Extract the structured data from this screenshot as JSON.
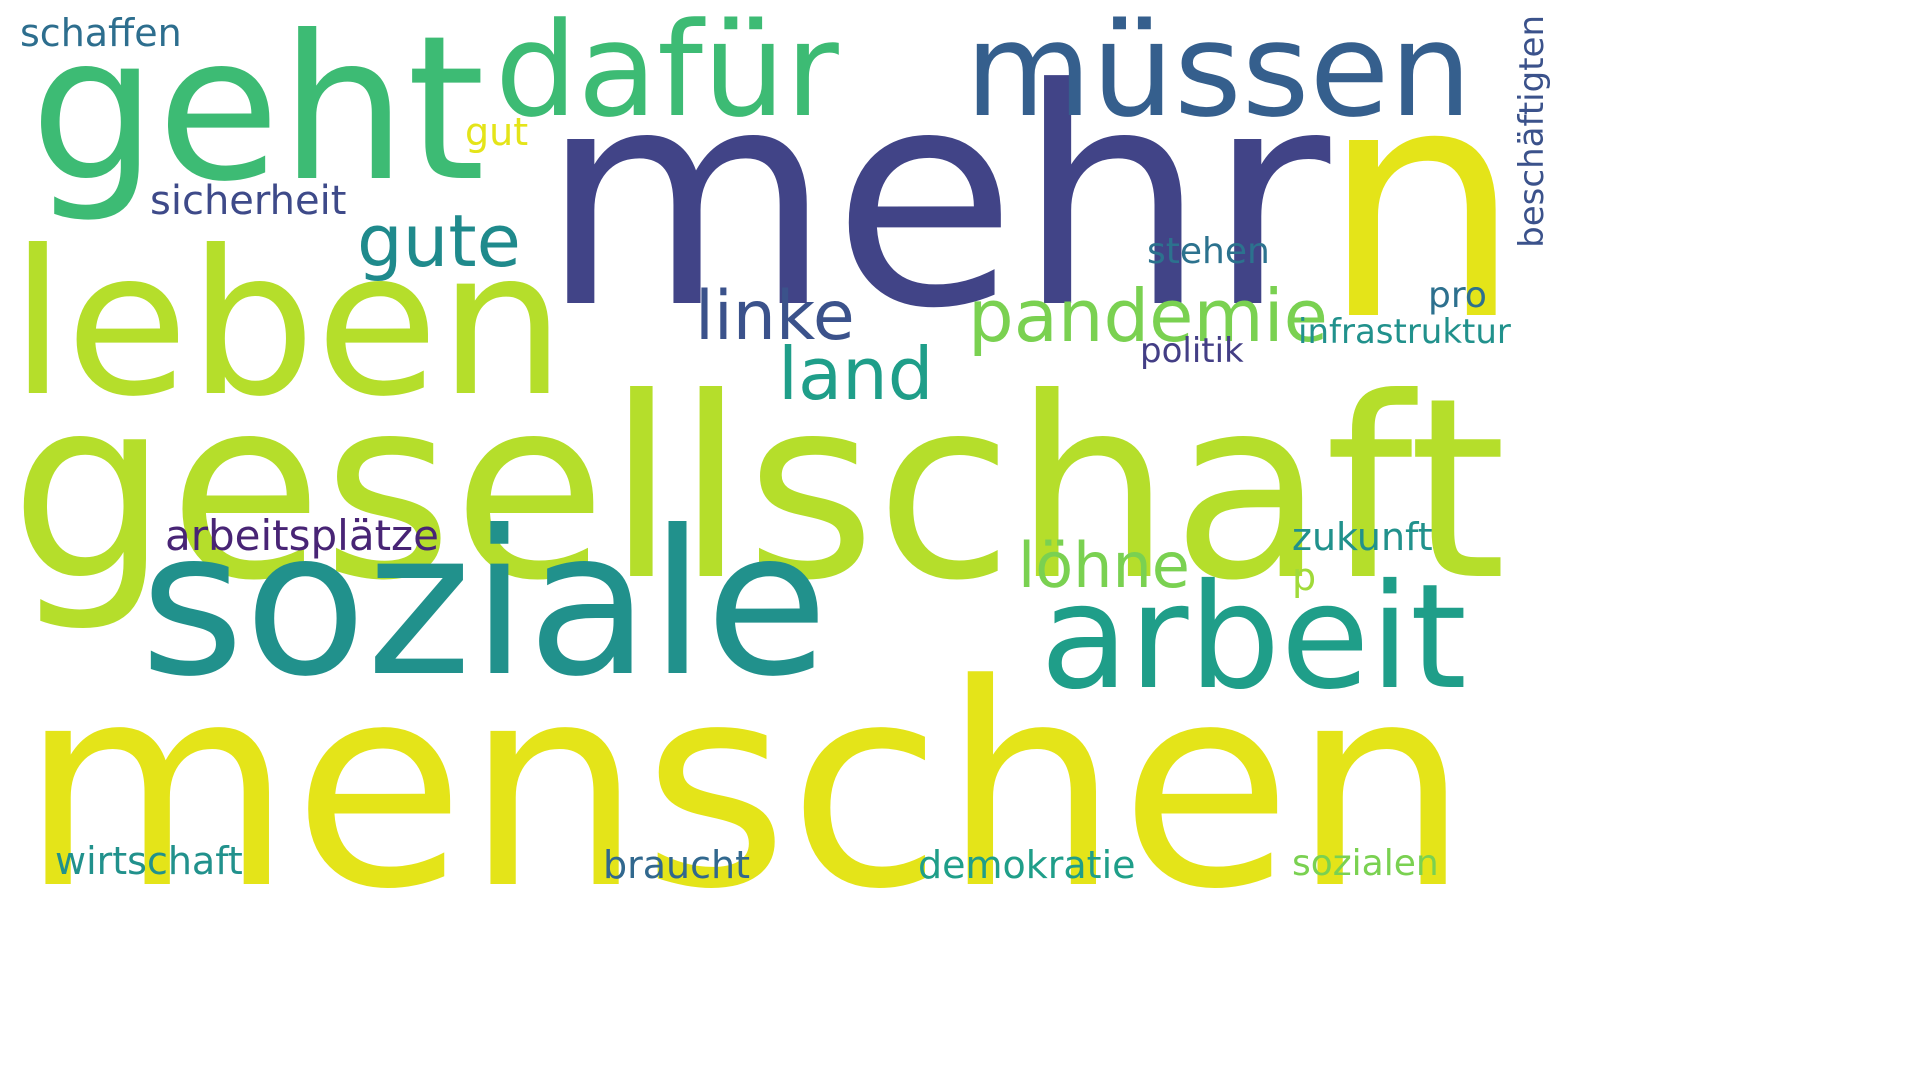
{
  "words": [
    {
      "text": "menschen",
      "color": "#e4e419"
    },
    {
      "text": "gesellschaft",
      "color": "#b5de2b"
    },
    {
      "text": "mehr",
      "color": "#414487"
    },
    {
      "text": "n",
      "color": "#e4e419"
    },
    {
      "text": "soziale",
      "color": "#21918c"
    },
    {
      "text": "leben",
      "color": "#b5de2b"
    },
    {
      "text": "geht",
      "color": "#3dbb74"
    },
    {
      "text": "dafür",
      "color": "#3dbb74"
    },
    {
      "text": "müssen",
      "color": "#355f8d"
    },
    {
      "text": "arbeit",
      "color": "#1f9e89"
    },
    {
      "text": "pandemie",
      "color": "#7ad151"
    },
    {
      "text": "gute",
      "color": "#1f8a8c"
    },
    {
      "text": "linke",
      "color": "#3b528b"
    },
    {
      "text": "land",
      "color": "#1f9e89"
    },
    {
      "text": "löhne",
      "color": "#7ad151"
    },
    {
      "text": "arbeitsplätze",
      "color": "#482475"
    },
    {
      "text": "sicherheit",
      "color": "#3e4a89"
    },
    {
      "text": "schaffen",
      "color": "#2d6e8e"
    },
    {
      "text": "gut",
      "color": "#e4e419"
    },
    {
      "text": "stehen",
      "color": "#2c728e"
    },
    {
      "text": "politik",
      "color": "#433e85"
    },
    {
      "text": "pro",
      "color": "#2d708e"
    },
    {
      "text": "infrastruktur",
      "color": "#21918c"
    },
    {
      "text": "beschäftigten",
      "color": "#3b528b"
    },
    {
      "text": "zukunft",
      "color": "#21918c"
    },
    {
      "text": "p",
      "color": "#a0da39"
    },
    {
      "text": "wirtschaft",
      "color": "#21918c"
    },
    {
      "text": "braucht",
      "color": "#31688e"
    },
    {
      "text": "demokratie",
      "color": "#1f9e89"
    },
    {
      "text": "sozialen",
      "color": "#7ad151"
    }
  ]
}
